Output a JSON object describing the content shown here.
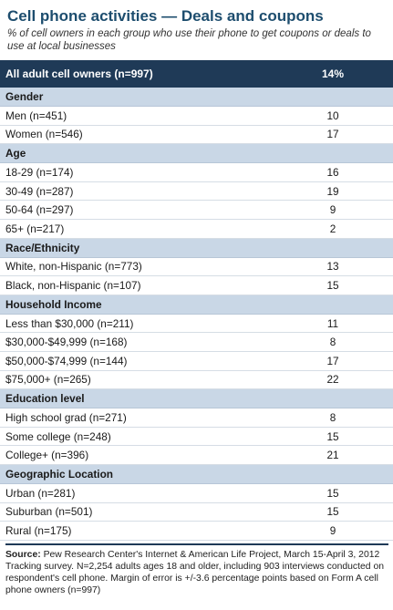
{
  "title": "Cell phone activities — Deals and coupons",
  "subtitle": "% of cell owners in each group who use their phone to get coupons or deals to use at local businesses",
  "chart_data": {
    "type": "table",
    "header": {
      "label": "All adult cell owners (n=997)",
      "value": "14%"
    },
    "groups": [
      {
        "name": "Gender",
        "rows": [
          {
            "label": "Men (n=451)",
            "value": "10"
          },
          {
            "label": "Women (n=546)",
            "value": "17"
          }
        ]
      },
      {
        "name": "Age",
        "rows": [
          {
            "label": "18-29 (n=174)",
            "value": "16"
          },
          {
            "label": "30-49 (n=287)",
            "value": "19"
          },
          {
            "label": "50-64 (n=297)",
            "value": "9"
          },
          {
            "label": "65+ (n=217)",
            "value": "2"
          }
        ]
      },
      {
        "name": "Race/Ethnicity",
        "rows": [
          {
            "label": "White, non-Hispanic (n=773)",
            "value": "13"
          },
          {
            "label": "Black, non-Hispanic (n=107)",
            "value": "15"
          }
        ]
      },
      {
        "name": "Household Income",
        "rows": [
          {
            "label": "Less than $30,000 (n=211)",
            "value": "11"
          },
          {
            "label": "$30,000-$49,999 (n=168)",
            "value": "8"
          },
          {
            "label": "$50,000-$74,999 (n=144)",
            "value": "17"
          },
          {
            "label": "$75,000+ (n=265)",
            "value": "22"
          }
        ]
      },
      {
        "name": "Education level",
        "rows": [
          {
            "label": "High school grad (n=271)",
            "value": "8"
          },
          {
            "label": "Some college (n=248)",
            "value": "15"
          },
          {
            "label": "College+ (n=396)",
            "value": "21"
          }
        ]
      },
      {
        "name": "Geographic Location",
        "rows": [
          {
            "label": "Urban (n=281)",
            "value": "15"
          },
          {
            "label": "Suburban (n=501)",
            "value": "15"
          },
          {
            "label": "Rural (n=175)",
            "value": "9"
          }
        ]
      }
    ]
  },
  "source": {
    "prefix": "Source:",
    "text": "Pew Research Center's Internet & American Life Project, March 15-April 3, 2012 Tracking survey. N=2,254 adults ages 18 and older, including 903 interviews conducted on respondent's cell phone. Margin of error is +/-3.6 percentage points based on Form A cell phone owners (n=997)"
  }
}
